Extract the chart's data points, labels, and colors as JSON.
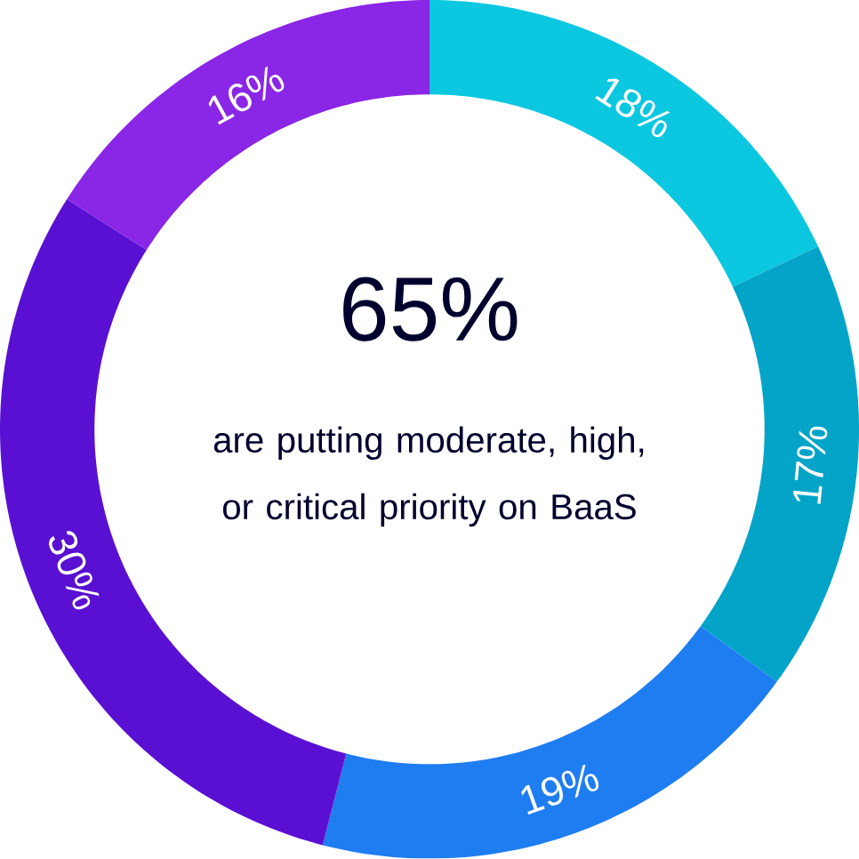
{
  "chart_data": {
    "type": "donut",
    "categories": [
      null,
      null,
      null,
      null,
      null
    ],
    "values": [
      18,
      17,
      19,
      30,
      16
    ],
    "value_labels": [
      "18%",
      "17%",
      "19%",
      "30%",
      "16%"
    ],
    "colors": [
      "#0bc8e0",
      "#04a4c8",
      "#1f7df2",
      "#5a10d2",
      "#8a26e6"
    ],
    "annotations": [
      "65%",
      "are putting moderate, high, or critical priority on BaaS"
    ]
  }
}
